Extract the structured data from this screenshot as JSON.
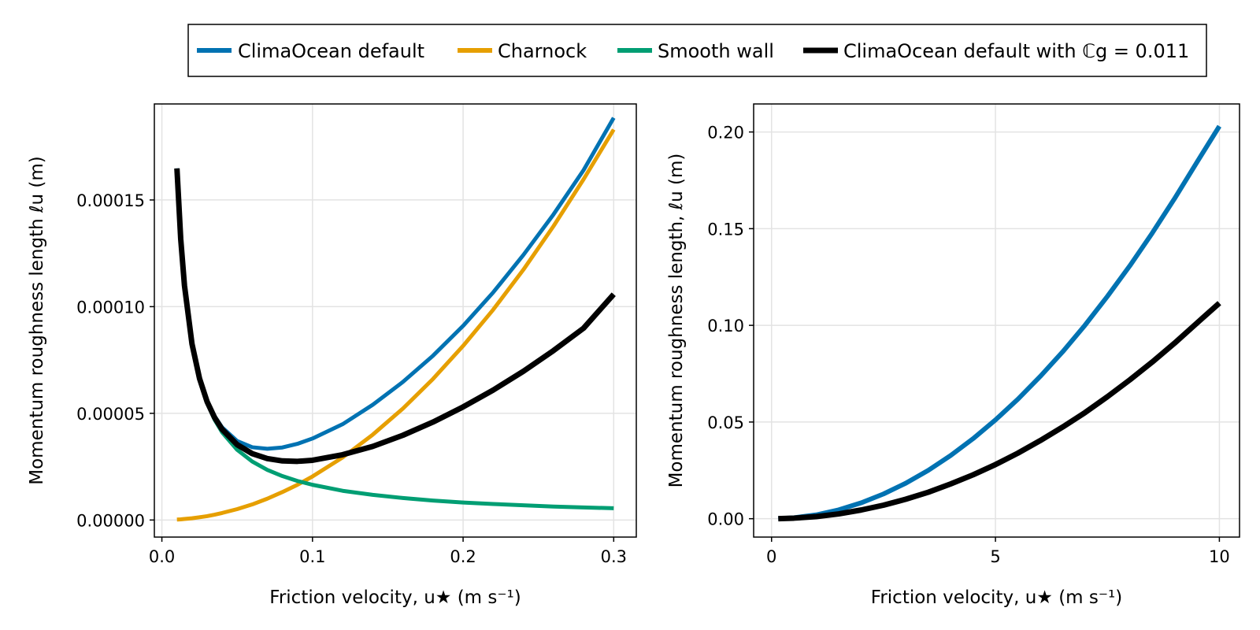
{
  "legend": {
    "entries": [
      {
        "label": "ClimaOcean default",
        "color": "#0072B2"
      },
      {
        "label": "Charnock",
        "color": "#E69F00"
      },
      {
        "label": "Smooth wall",
        "color": "#009E73"
      },
      {
        "label": "ClimaOcean default with ℂg = 0.011",
        "color": "#000000"
      }
    ]
  },
  "chart_data": [
    {
      "type": "line",
      "xlabel": "Friction velocity, u★ (m s⁻¹)",
      "ylabel": "Momentum roughness length ℓu (m)",
      "xlim": [
        -0.005,
        0.315
      ],
      "ylim": [
        -8e-06,
        0.000195
      ],
      "grid": true,
      "xticks": [
        0.0,
        0.1,
        0.2,
        0.3
      ],
      "xtick_labels": [
        "0.0",
        "0.1",
        "0.2",
        "0.3"
      ],
      "yticks": [
        0,
        5e-05,
        0.0001,
        0.00015
      ],
      "ytick_labels": [
        "0.00000",
        "0.00005",
        "0.00010",
        "0.00015"
      ],
      "x": [
        0.01,
        0.0125,
        0.015,
        0.02,
        0.025,
        0.03,
        0.035,
        0.04,
        0.05,
        0.06,
        0.07,
        0.08,
        0.09,
        0.1,
        0.12,
        0.14,
        0.16,
        0.18,
        0.2,
        0.22,
        0.24,
        0.26,
        0.28,
        0.3
      ],
      "series": [
        {
          "name": "ClimaOcean default",
          "color": "#0072B2",
          "width": 5,
          "values": [
            0.0001648,
            0.0001318,
            0.0001099,
            8.26e-05,
            6.65e-05,
            5.59e-05,
            4.87e-05,
            4.34e-05,
            3.7e-05,
            3.41e-05,
            3.34e-05,
            3.4e-05,
            3.57e-05,
            3.82e-05,
            4.49e-05,
            5.4e-05,
            6.47e-05,
            7.7e-05,
            9.1e-05,
            0.0001067,
            0.0001242,
            0.0001432,
            0.000164,
            0.0001885
          ]
        },
        {
          "name": "Charnock",
          "color": "#E69F00",
          "width": 5,
          "values": [
            2e-07,
            3e-07,
            5e-07,
            8e-07,
            1.3e-06,
            1.8e-06,
            2.5e-06,
            3.3e-06,
            5.1e-06,
            7.3e-06,
            1e-05,
            1.31e-05,
            1.65e-05,
            2.04e-05,
            2.93e-05,
            4e-05,
            5.22e-05,
            6.61e-05,
            8.16e-05,
            9.86e-05,
            0.0001173,
            0.0001377,
            0.0001597,
            0.000183
          ]
        },
        {
          "name": "Smooth wall",
          "color": "#009E73",
          "width": 5,
          "values": [
            0.0001646,
            0.0001316,
            0.0001097,
            8.23e-05,
            6.58e-05,
            5.48e-05,
            4.7e-05,
            4.11e-05,
            3.29e-05,
            2.74e-05,
            2.35e-05,
            2.06e-05,
            1.83e-05,
            1.65e-05,
            1.37e-05,
            1.18e-05,
            1.03e-05,
            9.1e-06,
            8.2e-06,
            7.5e-06,
            6.9e-06,
            6.3e-06,
            5.9e-06,
            5.5e-06
          ]
        },
        {
          "name": "ClimaOcean default with ℂg = 0.011",
          "color": "#000000",
          "width": 7,
          "values": [
            0.0001648,
            0.0001318,
            0.0001099,
            8.25e-05,
            6.63e-05,
            5.55e-05,
            4.8e-05,
            4.25e-05,
            3.53e-05,
            3.11e-05,
            2.88e-05,
            2.77e-05,
            2.75e-05,
            2.8e-05,
            3.06e-05,
            3.45e-05,
            3.97e-05,
            4.59e-05,
            5.3e-05,
            6.09e-05,
            6.97e-05,
            7.94e-05,
            8.99e-05,
            0.0001058
          ]
        }
      ]
    },
    {
      "type": "line",
      "xlabel": "Friction velocity, u★ (m s⁻¹)",
      "ylabel": "Momentum roughness length, ℓu (m)",
      "xlim": [
        -0.4,
        10.45
      ],
      "ylim": [
        -0.0095,
        0.2145
      ],
      "grid": true,
      "xticks": [
        0,
        5,
        10
      ],
      "xtick_labels": [
        "0",
        "5",
        "10"
      ],
      "yticks": [
        0.0,
        0.05,
        0.1,
        0.15,
        0.2
      ],
      "ytick_labels": [
        "0.00",
        "0.05",
        "0.10",
        "0.15",
        "0.20"
      ],
      "x": [
        0.15,
        0.5,
        1,
        1.5,
        2,
        2.5,
        3,
        3.5,
        4,
        4.5,
        5,
        5.5,
        6,
        6.5,
        7,
        7.5,
        8,
        8.5,
        9,
        9.5,
        10
      ],
      "series": [
        {
          "name": "ClimaOcean default",
          "color": "#0072B2",
          "width": 6,
          "values": [
            5e-05,
            0.0005,
            0.002,
            0.0046,
            0.0082,
            0.0128,
            0.0184,
            0.025,
            0.0327,
            0.0414,
            0.0511,
            0.0618,
            0.0736,
            0.0863,
            0.1001,
            0.115,
            0.1308,
            0.1477,
            0.1656,
            0.1844,
            0.203
          ]
        },
        {
          "name": "ClimaOcean default with ℂg = 0.011",
          "color": "#000000",
          "width": 7,
          "values": [
            3e-05,
            0.0003,
            0.0011,
            0.0025,
            0.0045,
            0.007,
            0.0101,
            0.0137,
            0.018,
            0.0227,
            0.028,
            0.0339,
            0.0404,
            0.0474,
            0.0549,
            0.0631,
            0.0718,
            0.081,
            0.0908,
            0.1012,
            0.1115
          ]
        }
      ]
    }
  ]
}
